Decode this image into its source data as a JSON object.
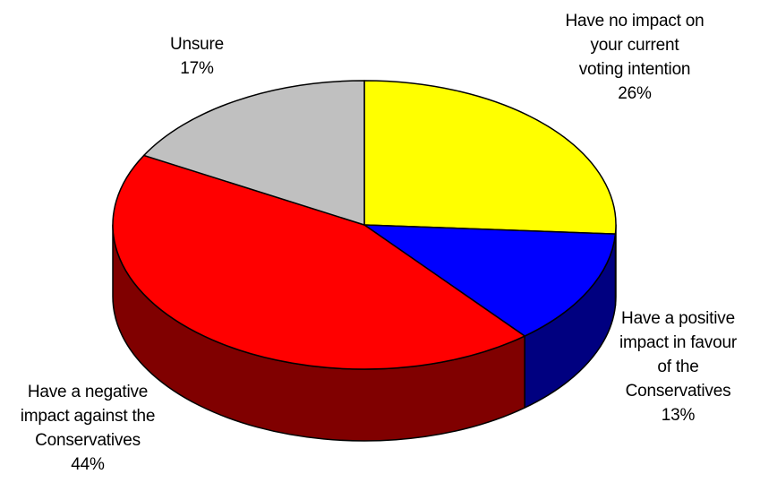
{
  "chart_data": {
    "type": "pie",
    "style": "3d",
    "legend": "none",
    "start_angle_deg": -90,
    "direction": "clockwise",
    "slices": [
      {
        "label": [
          "Have no impact on",
          "your current",
          "voting intention"
        ],
        "value": 26,
        "value_label": "26%",
        "color": "#ffff00",
        "side_color": "#808000"
      },
      {
        "label": [
          "Have a positive",
          "impact in favour",
          "of the",
          "Conservatives"
        ],
        "value": 13,
        "value_label": "13%",
        "color": "#0000ff",
        "side_color": "#000080"
      },
      {
        "label": [
          "Have a negative",
          "impact against the",
          "Conservatives"
        ],
        "value": 44,
        "value_label": "44%",
        "color": "#ff0000",
        "side_color": "#800000"
      },
      {
        "label": [
          "Unsure"
        ],
        "value": 17,
        "value_label": "17%",
        "color": "#c0c0c0",
        "side_color": "#808080"
      }
    ]
  }
}
